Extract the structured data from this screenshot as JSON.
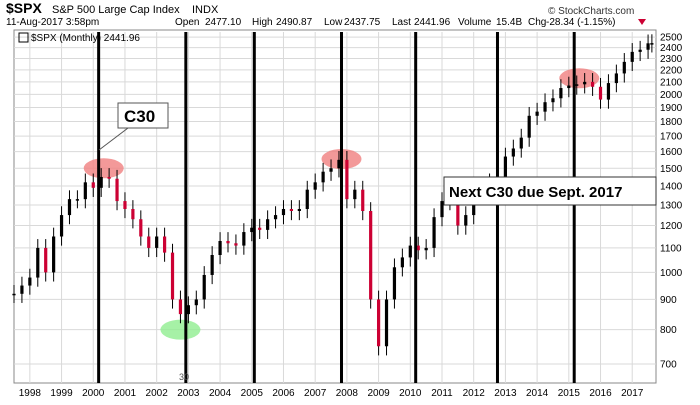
{
  "header": {
    "symbol": "$SPX",
    "name": "S&P 500 Large Cap Index",
    "exchange": "INDX",
    "date": "11-Aug-2017 3:58pm",
    "open_label": "Open",
    "open": "2477.10",
    "high_label": "High",
    "high": "2490.87",
    "low_label": "Low",
    "low": "2437.75",
    "last_label": "Last",
    "last": "2441.96",
    "volume_label": "Volume",
    "volume": "15.4B",
    "chg_label": "Chg",
    "chg": "-28.34 (-1.15%)",
    "watermark": "© StockCharts.com",
    "legend": "$SPX (Monthly) 2441.96"
  },
  "annotations": {
    "callout": "C30",
    "note": "Next C30 due Sept. 2017",
    "low_label": "30"
  },
  "colors": {
    "candle": "#cc0033",
    "cycle_line": "#000000",
    "top_highlight": "#f08080",
    "low_highlight": "#90ee90",
    "grid": "#d9d9d9"
  },
  "chart_data": {
    "type": "candlestick",
    "title": "$SPX (Monthly)",
    "xlabel": "",
    "ylabel": "",
    "xlim": [
      1997.5,
      2017.75
    ],
    "ylim": [
      650,
      2550
    ],
    "yscale": "log",
    "grid": true,
    "legend": "top-left",
    "x_ticks": [
      "1998",
      "1999",
      "2000",
      "2001",
      "2002",
      "2003",
      "2004",
      "2005",
      "2006",
      "2007",
      "2008",
      "2009",
      "2010",
      "2011",
      "2012",
      "2013",
      "2014",
      "2015",
      "2016",
      "2017"
    ],
    "y_ticks": [
      700,
      800,
      900,
      1000,
      1100,
      1200,
      1300,
      1400,
      1500,
      1600,
      1700,
      1800,
      1900,
      2000,
      2100,
      2200,
      2300,
      2400,
      2500
    ],
    "series": [
      {
        "name": "$SPX",
        "x": [
          1997.5,
          1997.75,
          1998.0,
          1998.25,
          1998.5,
          1998.75,
          1999.0,
          1999.25,
          1999.5,
          1999.75,
          2000.0,
          2000.25,
          2000.5,
          2000.75,
          2001.0,
          2001.25,
          2001.5,
          2001.75,
          2002.0,
          2002.25,
          2002.5,
          2002.75,
          2003.0,
          2003.25,
          2003.5,
          2003.75,
          2004.0,
          2004.25,
          2004.5,
          2004.75,
          2005.0,
          2005.25,
          2005.5,
          2005.75,
          2006.0,
          2006.25,
          2006.5,
          2006.75,
          2007.0,
          2007.25,
          2007.5,
          2007.75,
          2008.0,
          2008.25,
          2008.5,
          2008.75,
          2009.0,
          2009.25,
          2009.5,
          2009.75,
          2010.0,
          2010.25,
          2010.5,
          2010.75,
          2011.0,
          2011.25,
          2011.5,
          2011.75,
          2012.0,
          2012.25,
          2012.5,
          2012.75,
          2013.0,
          2013.25,
          2013.5,
          2013.75,
          2014.0,
          2014.25,
          2014.5,
          2014.75,
          2015.0,
          2015.25,
          2015.5,
          2015.75,
          2016.0,
          2016.25,
          2016.5,
          2016.75,
          2017.0,
          2017.25,
          2017.5,
          2017.62
        ],
        "close": [
          920,
          950,
          980,
          1100,
          1000,
          1150,
          1250,
          1330,
          1330,
          1420,
          1390,
          1450,
          1440,
          1320,
          1280,
          1230,
          1150,
          1100,
          1150,
          1080,
          900,
          850,
          880,
          900,
          990,
          1070,
          1130,
          1120,
          1110,
          1170,
          1190,
          1180,
          1230,
          1250,
          1280,
          1270,
          1280,
          1380,
          1420,
          1480,
          1500,
          1550,
          1330,
          1380,
          1270,
          900,
          750,
          900,
          1020,
          1060,
          1110,
          1090,
          1100,
          1240,
          1320,
          1330,
          1200,
          1250,
          1400,
          1360,
          1420,
          1430,
          1570,
          1620,
          1690,
          1840,
          1870,
          1940,
          1970,
          2050,
          2070,
          2080,
          2100,
          2060,
          1960,
          2090,
          2170,
          2270,
          2360,
          2380,
          2440,
          2441.96
        ]
      }
    ],
    "cycle_lines": [
      2000.17,
      2002.92,
      2005.08,
      2007.83,
      2010.17,
      2012.75,
      2015.17
    ],
    "highlights": [
      {
        "x": 2000.33,
        "y": 1500,
        "kind": "top"
      },
      {
        "x": 2007.83,
        "y": 1555,
        "kind": "top"
      },
      {
        "x": 2015.33,
        "y": 2130,
        "kind": "top"
      },
      {
        "x": 2002.75,
        "y": 800,
        "kind": "low"
      }
    ]
  }
}
